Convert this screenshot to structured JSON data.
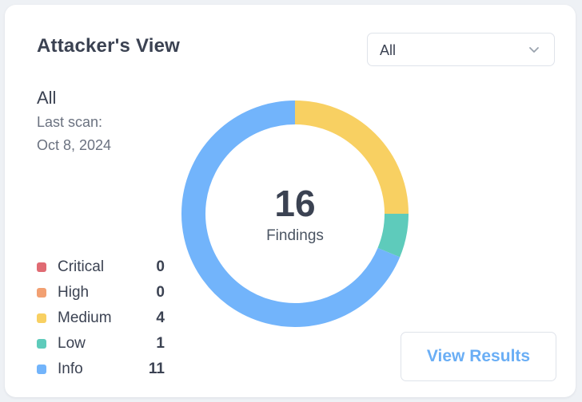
{
  "card": {
    "title": "Attacker's View",
    "filter": {
      "value": "All",
      "icon": "chevron-down-icon"
    },
    "scope": "All",
    "last_scan_label": "Last scan:",
    "last_scan_date": "Oct 8, 2024",
    "total": {
      "count": "16",
      "label": "Findings"
    },
    "legend": [
      {
        "label": "Critical",
        "count": "0",
        "color": "#e06b73"
      },
      {
        "label": "High",
        "count": "0",
        "color": "#f2a072"
      },
      {
        "label": "Medium",
        "count": "4",
        "color": "#f8d062"
      },
      {
        "label": "Low",
        "count": "1",
        "color": "#5ecbbb"
      },
      {
        "label": "Info",
        "count": "11",
        "color": "#72b4fb"
      }
    ],
    "view_results_label": "View Results"
  },
  "chart_data": {
    "type": "pie",
    "categories": [
      "Critical",
      "High",
      "Medium",
      "Low",
      "Info"
    ],
    "values": [
      0,
      0,
      4,
      1,
      11
    ],
    "colors": [
      "#e06b73",
      "#f2a072",
      "#f8d062",
      "#5ecbbb",
      "#72b4fb"
    ],
    "start": "top",
    "direction": "clockwise",
    "donut": true
  }
}
